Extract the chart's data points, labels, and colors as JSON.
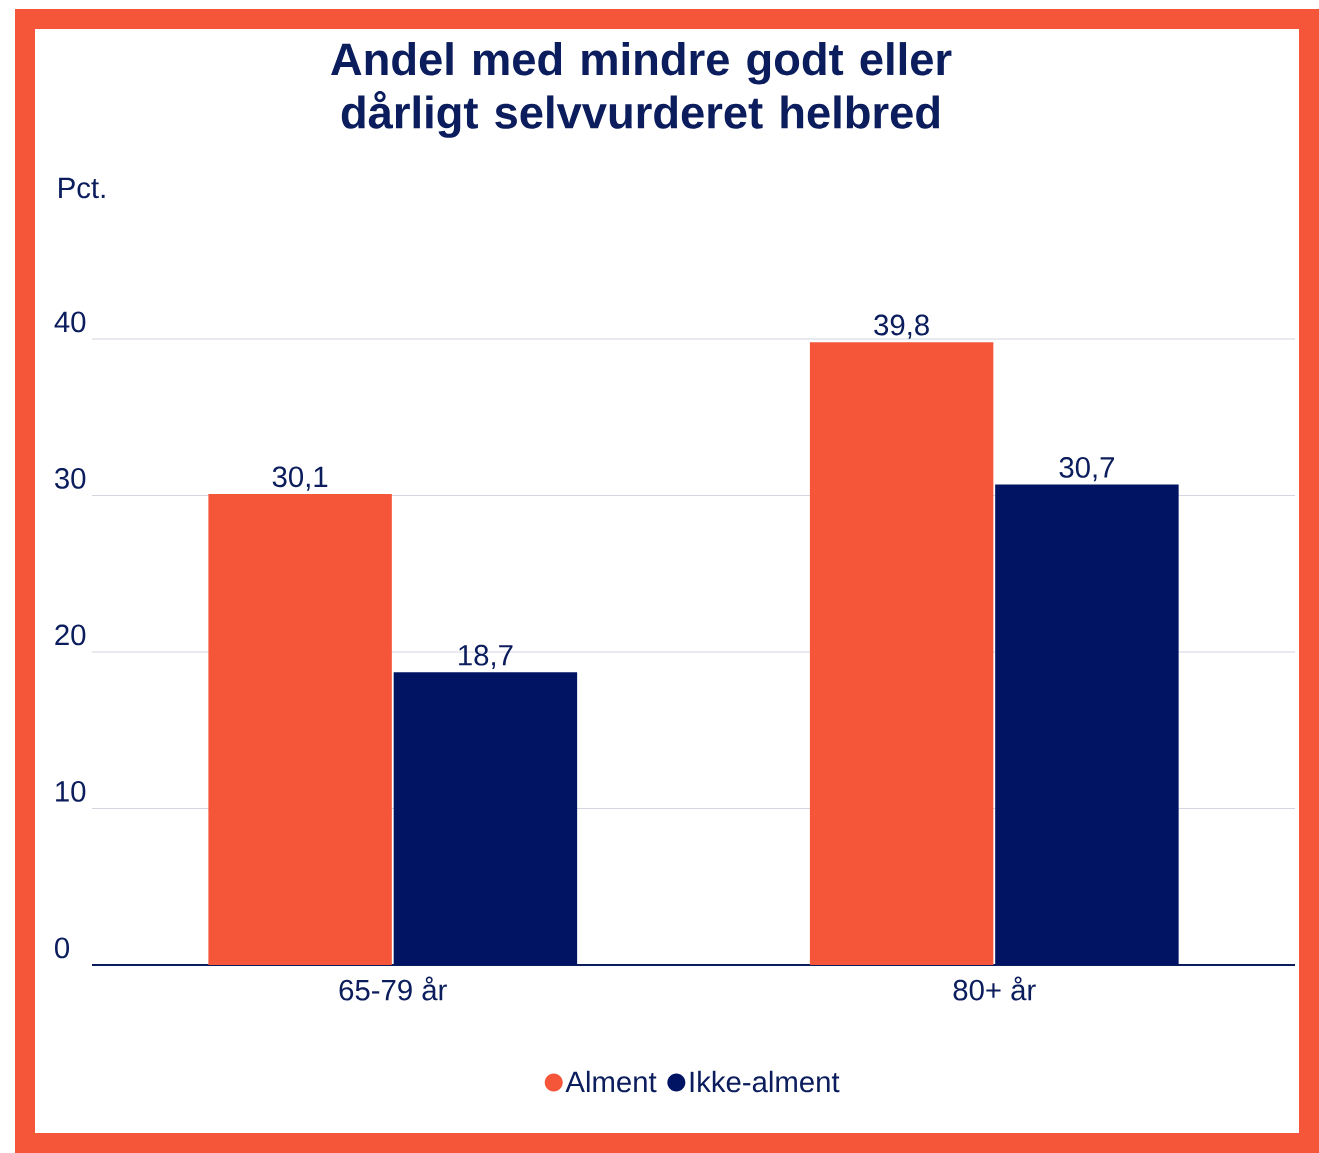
{
  "chart_data": {
    "type": "bar",
    "title": "Andel med mindre godt eller dårligt selvvurderet helbred",
    "ylabel": "Pct.",
    "categories": [
      "65-79 år",
      "80+ år"
    ],
    "series": [
      {
        "name": "Alment",
        "color": "#f5563a",
        "values": [
          30.1,
          39.8
        ]
      },
      {
        "name": "Ikke-alment",
        "color": "#001463",
        "values": [
          18.7,
          30.7
        ]
      }
    ],
    "value_labels": [
      [
        "30,1",
        "39,8"
      ],
      [
        "18,7",
        "30,7"
      ]
    ],
    "ylim": [
      0,
      40
    ],
    "yticks": [
      0,
      10,
      20,
      30,
      40
    ],
    "grid": "y",
    "legend": "bottom"
  }
}
